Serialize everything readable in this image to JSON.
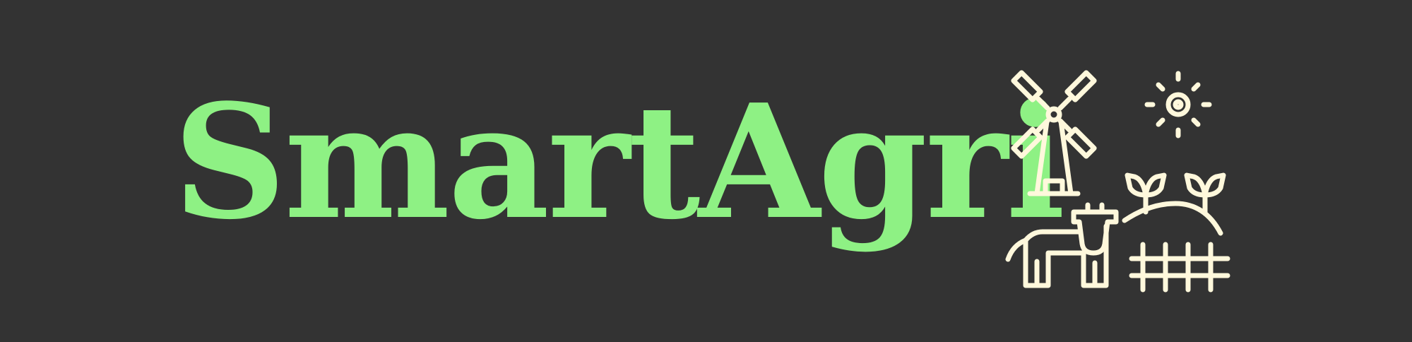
{
  "logo": {
    "wordmark": "SmartAgri",
    "icon": "farm-icon",
    "icon_parts": [
      "windmill-icon",
      "sun-icon",
      "cow-icon",
      "sprout-icon",
      "fence-icon"
    ],
    "colors": {
      "background": "#333333",
      "text": "#8EF184",
      "icon": "#FFF8DC"
    }
  }
}
